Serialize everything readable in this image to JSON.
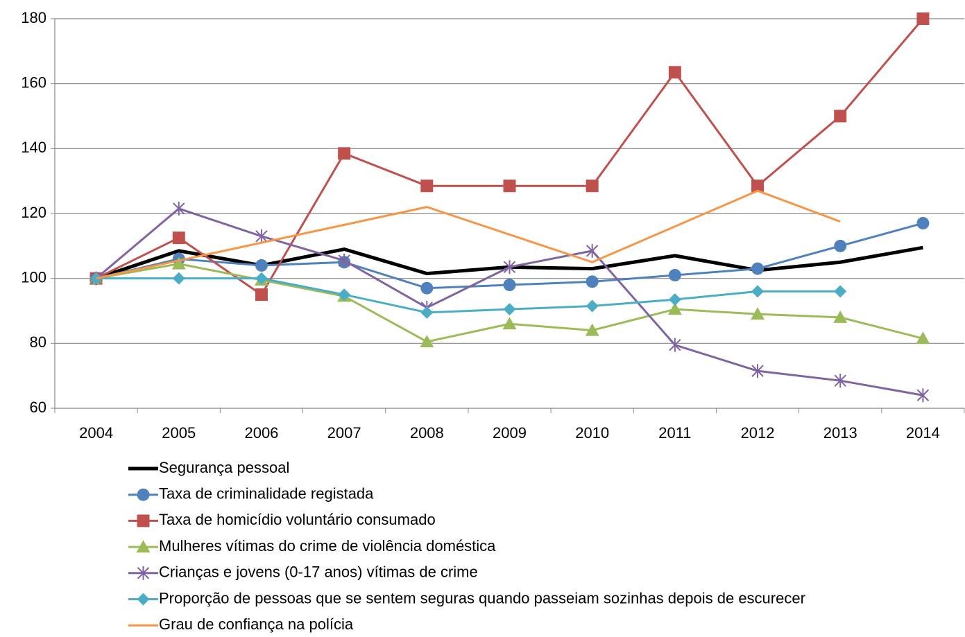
{
  "chart_data": {
    "type": "line",
    "categories": [
      "2004",
      "2005",
      "2006",
      "2007",
      "2008",
      "2009",
      "2010",
      "2011",
      "2012",
      "2013",
      "2014"
    ],
    "series": [
      {
        "name": "Segurança pessoal",
        "color": "#000000",
        "marker": "none",
        "width": 5,
        "values": [
          100,
          108.5,
          104,
          109,
          101.5,
          103.5,
          103,
          107,
          102.5,
          105,
          109.5
        ]
      },
      {
        "name": "Taxa de criminalidade registada",
        "color": "#4f81bd",
        "marker": "circle",
        "width": 3,
        "values": [
          100,
          106,
          104,
          105,
          97,
          98,
          99,
          101,
          103,
          110,
          117
        ]
      },
      {
        "name": "Taxa de homicídio voluntário consumado",
        "color": "#c0504d",
        "marker": "square",
        "width": 3,
        "values": [
          100,
          112.5,
          95,
          138.5,
          128.5,
          128.5,
          128.5,
          163.5,
          128.5,
          150,
          180
        ]
      },
      {
        "name": "Mulheres vítimas do crime de violência doméstica",
        "color": "#9bbb59",
        "marker": "triangle",
        "width": 3,
        "values": [
          100,
          104.5,
          99.5,
          94.5,
          80.5,
          86,
          84,
          90.5,
          89,
          88,
          81.5
        ]
      },
      {
        "name": "Crianças e jovens (0-17 anos) vítimas de crime",
        "color": "#8064a2",
        "marker": "star",
        "width": 3,
        "values": [
          100,
          121.5,
          113,
          105.5,
          91,
          103.5,
          108.5,
          79.5,
          71.5,
          68.5,
          64
        ]
      },
      {
        "name": "Proporção de pessoas que se sentem seguras quando passeiam sozinhas depois de escurecer",
        "color": "#4bacc6",
        "marker": "diamond",
        "width": 3,
        "values": [
          100,
          100,
          100,
          95,
          89.5,
          90.5,
          91.5,
          93.5,
          96,
          96,
          null
        ]
      },
      {
        "name": "Grau de confiança na polícia",
        "color": "#f79646",
        "marker": "none",
        "width": 3,
        "values": [
          100,
          105.5,
          111,
          116.5,
          122,
          113.5,
          105,
          116,
          127,
          117.5,
          null
        ]
      }
    ],
    "ylim": [
      60,
      180
    ],
    "yticks": [
      60,
      80,
      100,
      120,
      140,
      160,
      180
    ],
    "grid": true
  }
}
